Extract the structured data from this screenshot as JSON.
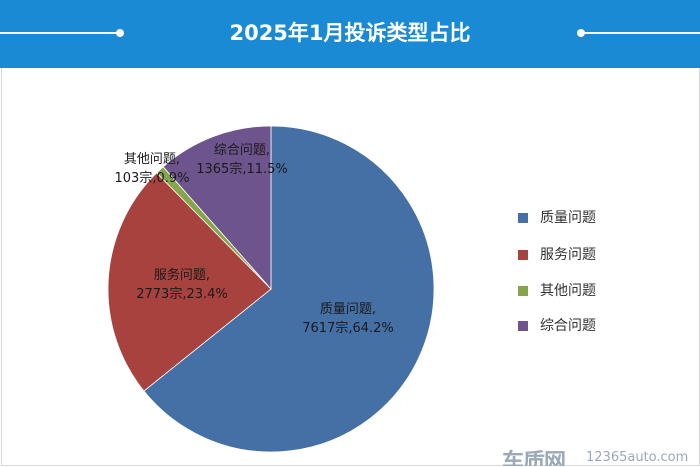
{
  "header": {
    "title": "2025年1月投诉类型占比"
  },
  "colors": {
    "header_bg": "#1a8ad4",
    "label_text": "#1a1a1a"
  },
  "chart_data": {
    "type": "pie",
    "title": "2025年1月投诉类型占比",
    "legend_position": "right",
    "slices": [
      {
        "name": "质量问题",
        "count": 7617,
        "percent": 64.2,
        "color": "#4470a5",
        "label_line1": "质量问题,",
        "label_line2": "7617宗,64.2%"
      },
      {
        "name": "服务问题",
        "count": 2773,
        "percent": 23.4,
        "color": "#a8423f",
        "label_line1": "服务问题,",
        "label_line2": "2773宗,23.4%"
      },
      {
        "name": "其他问题",
        "count": 103,
        "percent": 0.9,
        "color": "#86a44a",
        "label_line1": "其他问题,",
        "label_line2": "103宗,0.9%"
      },
      {
        "name": "综合问题",
        "count": 1365,
        "percent": 11.5,
        "color": "#6e548d",
        "label_line1": "综合问题,",
        "label_line2": "1365宗,11.5%"
      }
    ]
  },
  "watermark": {
    "logo": "车质网",
    "url": "12365auto.com"
  }
}
